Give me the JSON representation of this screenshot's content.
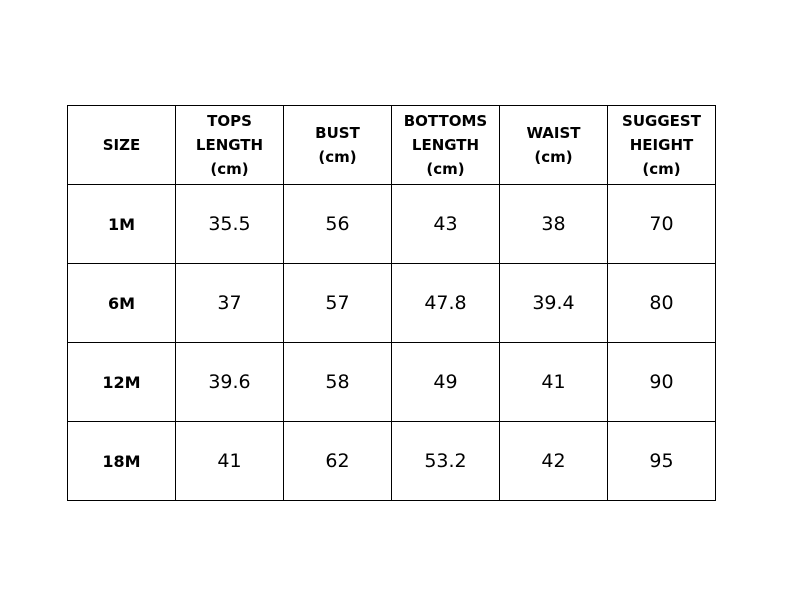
{
  "table": {
    "headers": [
      [
        "SIZE"
      ],
      [
        "TOPS",
        "LENGTH",
        "(cm)"
      ],
      [
        "BUST",
        "(cm)"
      ],
      [
        "BOTTOMS",
        "LENGTH",
        "(cm)"
      ],
      [
        "WAIST",
        "(cm)"
      ],
      [
        "SUGGEST",
        "HEIGHT",
        "(cm)"
      ]
    ],
    "rows": [
      [
        "1M",
        "35.5",
        "56",
        "43",
        "38",
        "70"
      ],
      [
        "6M",
        "37",
        "57",
        "47.8",
        "39.4",
        "80"
      ],
      [
        "12M",
        "39.6",
        "58",
        "49",
        "41",
        "90"
      ],
      [
        "18M",
        "41",
        "62",
        "53.2",
        "42",
        "95"
      ]
    ]
  }
}
